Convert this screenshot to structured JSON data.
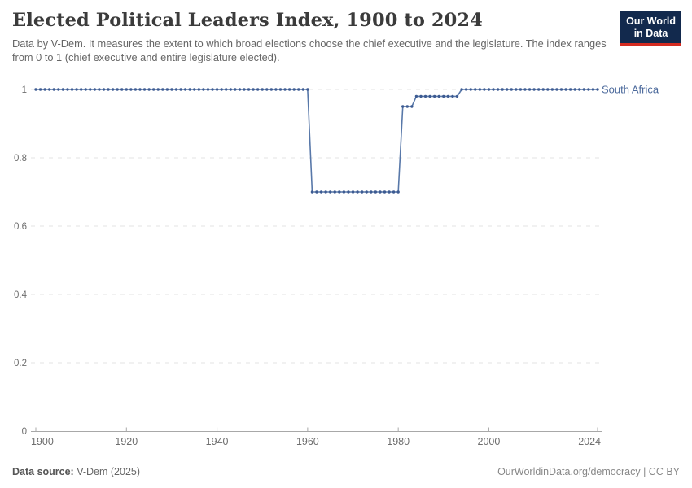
{
  "header": {
    "title": "Elected Political Leaders Index, 1900 to 2024",
    "subtitle": "Data by V-Dem. It measures the extent to which broad elections choose the chief executive and the legislature. The index ranges from 0 to 1 (chief executive and entire legislature elected).",
    "logo": {
      "line1": "Our World",
      "line2": "in Data",
      "bg_color": "#12294d",
      "accent_color": "#d42b21"
    }
  },
  "footer": {
    "source_label": "Data source:",
    "source_value": " V-Dem (2025)",
    "credit": "OurWorldinData.org/democracy | CC BY"
  },
  "chart_data": {
    "type": "line",
    "title": "Elected Political Leaders Index, 1900 to 2024",
    "xlabel": "",
    "ylabel": "",
    "x_range": [
      1900,
      2024
    ],
    "y_range": [
      0,
      1
    ],
    "xticks": [
      1900,
      1920,
      1940,
      1960,
      1980,
      2000,
      2024
    ],
    "yticks": [
      0,
      0.2,
      0.4,
      0.6,
      0.8,
      1
    ],
    "grid": "horizontal-dashed",
    "legend_position": "end-of-line-label",
    "colors": {
      "line": "#5878a9",
      "marker": "#3d5b92",
      "entity_label": "#4c6a9c",
      "gridline": "#e3e3e3",
      "axis": "#a8a8a8",
      "tick_text": "#6e6e6e"
    },
    "series": [
      {
        "name": "South Africa",
        "markers_every_year": true,
        "segments": [
          {
            "from": 1900,
            "to": 1960,
            "value": 1
          },
          {
            "from": 1961,
            "to": 1980,
            "value": 0.7
          },
          {
            "from": 1981,
            "to": 1983,
            "value": 0.95
          },
          {
            "from": 1984,
            "to": 1993,
            "value": 0.98
          },
          {
            "from": 1994,
            "to": 2024,
            "value": 1
          }
        ]
      }
    ]
  }
}
